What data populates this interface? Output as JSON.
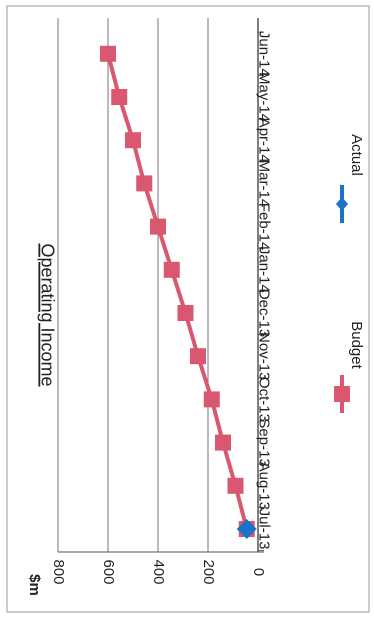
{
  "chart_data": {
    "type": "line",
    "title": "Operating Income",
    "ylabel": "$m",
    "categories": [
      "Jul-13",
      "Aug-13",
      "Sep-13",
      "Oct-13",
      "Nov-13",
      "Dec-13",
      "Jan-14",
      "Feb-14",
      "Mar-14",
      "Apr-14",
      "May-14",
      "Jun-14"
    ],
    "ylim": [
      0,
      800
    ],
    "yticks": [
      0,
      200,
      400,
      600,
      800
    ],
    "grid": true,
    "legend_position": "right",
    "series": [
      {
        "name": "Budget",
        "color": "#d9576f",
        "marker": "square",
        "values": [
          45,
          90,
          140,
          185,
          240,
          290,
          345,
          400,
          455,
          500,
          555,
          600
        ]
      },
      {
        "name": "Actual",
        "color": "#1a73c9",
        "marker": "diamond",
        "values": [
          45,
          null,
          null,
          null,
          null,
          null,
          null,
          null,
          null,
          null,
          null,
          null
        ]
      }
    ]
  }
}
